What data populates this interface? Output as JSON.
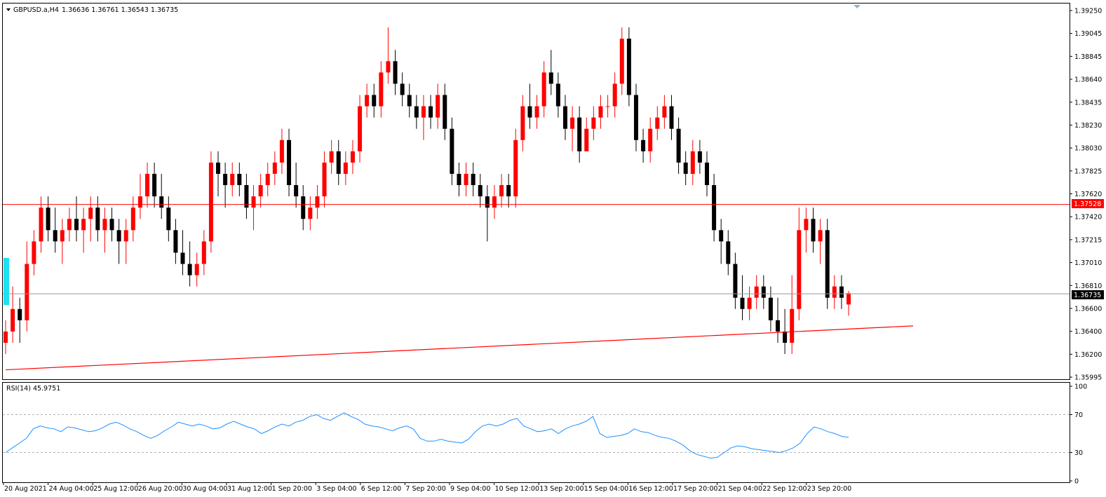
{
  "main_header": {
    "symbol": "GBPUSD.a,H4",
    "ohlc": "1.36636 1.36761 1.36543 1.36735"
  },
  "rsi_header": {
    "label": "RSI(14) 45.9751"
  },
  "colors": {
    "bull": "#ff0000",
    "bear": "#000000",
    "hline": "#ff0000",
    "trendline": "#ff0000",
    "bid_line": "#8c9aa5",
    "rsi_line": "#1e90ff",
    "rsi_level": "#b0b0b0",
    "marker": "#1ee0f0"
  },
  "price_axis_labels": [
    "1.39250",
    "1.39045",
    "1.38845",
    "1.38640",
    "1.38435",
    "1.38230",
    "1.38030",
    "1.37825",
    "1.37620",
    "1.37420",
    "1.37215",
    "1.37010",
    "1.36810",
    "1.36600",
    "1.36400",
    "1.36200",
    "1.35995"
  ],
  "rsi_axis_labels": [
    "100",
    "70",
    "30",
    "0"
  ],
  "price_tags": {
    "red_level": "1.37528",
    "bid": "1.36735"
  },
  "time_labels": [
    "20 Aug 2021",
    "24 Aug 04:00",
    "25 Aug 12:00",
    "26 Aug 20:00",
    "30 Aug 04:00",
    "31 Aug 12:00",
    "1 Sep 20:00",
    "3 Sep 04:00",
    "6 Sep 12:00",
    "7 Sep 20:00",
    "9 Sep 04:00",
    "10 Sep 12:00",
    "13 Sep 20:00",
    "15 Sep 04:00",
    "16 Sep 12:00",
    "17 Sep 20:00",
    "21 Sep 04:00",
    "22 Sep 12:00",
    "23 Sep 20:00"
  ],
  "chart_data": {
    "type": "candlestick",
    "symbol": "GBPUSD.a",
    "timeframe": "H4",
    "ylim": [
      1.35995,
      1.3925
    ],
    "horizontal_line": 1.37528,
    "bid_line": 1.36735,
    "trendline": {
      "start": {
        "bar": 0,
        "price": 1.3606
      },
      "end": {
        "bar": 217,
        "price": 1.3645
      }
    },
    "candles": [
      [
        1.363,
        1.365,
        1.362,
        1.364
      ],
      [
        1.364,
        1.368,
        1.363,
        1.366
      ],
      [
        1.366,
        1.367,
        1.363,
        1.365
      ],
      [
        1.365,
        1.372,
        1.364,
        1.37
      ],
      [
        1.37,
        1.373,
        1.369,
        1.372
      ],
      [
        1.372,
        1.376,
        1.371,
        1.375
      ],
      [
        1.375,
        1.376,
        1.372,
        1.373
      ],
      [
        1.373,
        1.375,
        1.371,
        1.372
      ],
      [
        1.372,
        1.374,
        1.37,
        1.373
      ],
      [
        1.373,
        1.375,
        1.372,
        1.374
      ],
      [
        1.374,
        1.376,
        1.372,
        1.373
      ],
      [
        1.373,
        1.375,
        1.371,
        1.374
      ],
      [
        1.374,
        1.376,
        1.372,
        1.375
      ],
      [
        1.375,
        1.376,
        1.372,
        1.373
      ],
      [
        1.373,
        1.375,
        1.371,
        1.374
      ],
      [
        1.374,
        1.375,
        1.372,
        1.373
      ],
      [
        1.373,
        1.374,
        1.37,
        1.372
      ],
      [
        1.372,
        1.374,
        1.37,
        1.373
      ],
      [
        1.373,
        1.376,
        1.372,
        1.375
      ],
      [
        1.375,
        1.378,
        1.374,
        1.376
      ],
      [
        1.376,
        1.379,
        1.375,
        1.378
      ],
      [
        1.378,
        1.379,
        1.375,
        1.376
      ],
      [
        1.376,
        1.378,
        1.374,
        1.375
      ],
      [
        1.375,
        1.376,
        1.372,
        1.373
      ],
      [
        1.373,
        1.374,
        1.37,
        1.371
      ],
      [
        1.371,
        1.373,
        1.369,
        1.37
      ],
      [
        1.37,
        1.372,
        1.368,
        1.369
      ],
      [
        1.369,
        1.371,
        1.368,
        1.37
      ],
      [
        1.37,
        1.373,
        1.369,
        1.372
      ],
      [
        1.372,
        1.38,
        1.371,
        1.379
      ],
      [
        1.379,
        1.38,
        1.376,
        1.378
      ],
      [
        1.378,
        1.379,
        1.375,
        1.377
      ],
      [
        1.377,
        1.379,
        1.376,
        1.378
      ],
      [
        1.378,
        1.379,
        1.376,
        1.377
      ],
      [
        1.377,
        1.378,
        1.374,
        1.375
      ],
      [
        1.375,
        1.377,
        1.373,
        1.376
      ],
      [
        1.376,
        1.378,
        1.375,
        1.377
      ],
      [
        1.377,
        1.379,
        1.376,
        1.378
      ],
      [
        1.378,
        1.38,
        1.377,
        1.379
      ],
      [
        1.379,
        1.382,
        1.378,
        1.381
      ],
      [
        1.381,
        1.382,
        1.376,
        1.377
      ],
      [
        1.377,
        1.379,
        1.375,
        1.376
      ],
      [
        1.376,
        1.377,
        1.373,
        1.374
      ],
      [
        1.374,
        1.376,
        1.373,
        1.375
      ],
      [
        1.375,
        1.377,
        1.374,
        1.376
      ],
      [
        1.376,
        1.38,
        1.375,
        1.379
      ],
      [
        1.379,
        1.381,
        1.378,
        1.38
      ],
      [
        1.38,
        1.381,
        1.377,
        1.378
      ],
      [
        1.378,
        1.38,
        1.377,
        1.379
      ],
      [
        1.379,
        1.381,
        1.378,
        1.38
      ],
      [
        1.38,
        1.385,
        1.379,
        1.384
      ],
      [
        1.384,
        1.386,
        1.383,
        1.385
      ],
      [
        1.385,
        1.386,
        1.383,
        1.384
      ],
      [
        1.384,
        1.388,
        1.383,
        1.387
      ],
      [
        1.387,
        1.391,
        1.386,
        1.388
      ],
      [
        1.388,
        1.389,
        1.385,
        1.386
      ],
      [
        1.386,
        1.387,
        1.384,
        1.385
      ],
      [
        1.385,
        1.386,
        1.383,
        1.384
      ],
      [
        1.384,
        1.385,
        1.382,
        1.383
      ],
      [
        1.383,
        1.385,
        1.381,
        1.384
      ],
      [
        1.384,
        1.385,
        1.382,
        1.383
      ],
      [
        1.383,
        1.386,
        1.382,
        1.385
      ],
      [
        1.385,
        1.386,
        1.381,
        1.382
      ],
      [
        1.382,
        1.383,
        1.377,
        1.378
      ],
      [
        1.378,
        1.379,
        1.376,
        1.377
      ],
      [
        1.377,
        1.379,
        1.376,
        1.378
      ],
      [
        1.378,
        1.379,
        1.376,
        1.377
      ],
      [
        1.377,
        1.378,
        1.375,
        1.376
      ],
      [
        1.376,
        1.377,
        1.372,
        1.375
      ],
      [
        1.375,
        1.377,
        1.374,
        1.376
      ],
      [
        1.376,
        1.378,
        1.375,
        1.377
      ],
      [
        1.377,
        1.378,
        1.375,
        1.376
      ],
      [
        1.376,
        1.382,
        1.375,
        1.381
      ],
      [
        1.381,
        1.385,
        1.38,
        1.384
      ],
      [
        1.384,
        1.386,
        1.382,
        1.383
      ],
      [
        1.383,
        1.385,
        1.382,
        1.384
      ],
      [
        1.384,
        1.388,
        1.383,
        1.387
      ],
      [
        1.387,
        1.389,
        1.385,
        1.386
      ],
      [
        1.386,
        1.387,
        1.383,
        1.384
      ],
      [
        1.384,
        1.385,
        1.381,
        1.382
      ],
      [
        1.382,
        1.384,
        1.38,
        1.383
      ],
      [
        1.383,
        1.384,
        1.379,
        1.38
      ],
      [
        1.38,
        1.383,
        1.38,
        1.382
      ],
      [
        1.382,
        1.384,
        1.381,
        1.383
      ],
      [
        1.383,
        1.385,
        1.382,
        1.384
      ],
      [
        1.384,
        1.385,
        1.383,
        1.384
      ],
      [
        1.384,
        1.387,
        1.383,
        1.386
      ],
      [
        1.386,
        1.391,
        1.385,
        1.39
      ],
      [
        1.39,
        1.391,
        1.384,
        1.385
      ],
      [
        1.385,
        1.386,
        1.38,
        1.381
      ],
      [
        1.381,
        1.382,
        1.379,
        1.38
      ],
      [
        1.38,
        1.383,
        1.379,
        1.382
      ],
      [
        1.382,
        1.384,
        1.381,
        1.383
      ],
      [
        1.383,
        1.385,
        1.382,
        1.384
      ],
      [
        1.384,
        1.385,
        1.381,
        1.382
      ],
      [
        1.382,
        1.383,
        1.378,
        1.379
      ],
      [
        1.379,
        1.38,
        1.377,
        1.378
      ],
      [
        1.378,
        1.381,
        1.377,
        1.38
      ],
      [
        1.38,
        1.381,
        1.378,
        1.379
      ],
      [
        1.379,
        1.38,
        1.376,
        1.377
      ],
      [
        1.377,
        1.378,
        1.372,
        1.373
      ],
      [
        1.373,
        1.374,
        1.37,
        1.372
      ],
      [
        1.372,
        1.373,
        1.369,
        1.37
      ],
      [
        1.37,
        1.371,
        1.366,
        1.367
      ],
      [
        1.367,
        1.369,
        1.365,
        1.366
      ],
      [
        1.366,
        1.368,
        1.365,
        1.367
      ],
      [
        1.367,
        1.369,
        1.366,
        1.368
      ],
      [
        1.368,
        1.369,
        1.366,
        1.367
      ],
      [
        1.367,
        1.368,
        1.364,
        1.365
      ],
      [
        1.365,
        1.367,
        1.363,
        1.364
      ],
      [
        1.364,
        1.366,
        1.362,
        1.363
      ],
      [
        1.363,
        1.369,
        1.362,
        1.366
      ],
      [
        1.366,
        1.375,
        1.365,
        1.373
      ],
      [
        1.373,
        1.375,
        1.371,
        1.374
      ],
      [
        1.374,
        1.375,
        1.371,
        1.372
      ],
      [
        1.372,
        1.374,
        1.37,
        1.373
      ],
      [
        1.373,
        1.374,
        1.366,
        1.367
      ],
      [
        1.367,
        1.369,
        1.366,
        1.368
      ],
      [
        1.368,
        1.369,
        1.366,
        1.367
      ],
      [
        1.3664,
        1.3676,
        1.3654,
        1.3674
      ]
    ],
    "rsi": {
      "period": 14,
      "current": 45.9751,
      "levels": [
        70,
        30
      ],
      "ylim": [
        0,
        100
      ],
      "values": [
        30,
        35,
        40,
        45,
        55,
        58,
        56,
        55,
        52,
        57,
        56,
        54,
        52,
        53,
        56,
        60,
        62,
        59,
        55,
        52,
        48,
        45,
        48,
        53,
        57,
        62,
        60,
        58,
        60,
        58,
        55,
        56,
        60,
        63,
        60,
        57,
        55,
        50,
        53,
        57,
        60,
        58,
        62,
        64,
        68,
        70,
        66,
        64,
        68,
        72,
        68,
        65,
        60,
        58,
        57,
        55,
        53,
        56,
        58,
        55,
        45,
        42,
        42,
        44,
        42,
        41,
        40,
        44,
        52,
        58,
        60,
        58,
        60,
        64,
        66,
        58,
        55,
        52,
        53,
        55,
        50,
        55,
        58,
        60,
        63,
        68,
        50,
        46,
        47,
        48,
        50,
        55,
        52,
        51,
        48,
        46,
        45,
        42,
        38,
        32,
        28,
        26,
        24,
        25,
        30,
        35,
        37,
        36,
        34,
        33,
        32,
        31,
        30,
        32,
        35,
        40,
        50,
        57,
        55,
        52,
        50,
        47,
        46
      ]
    }
  }
}
